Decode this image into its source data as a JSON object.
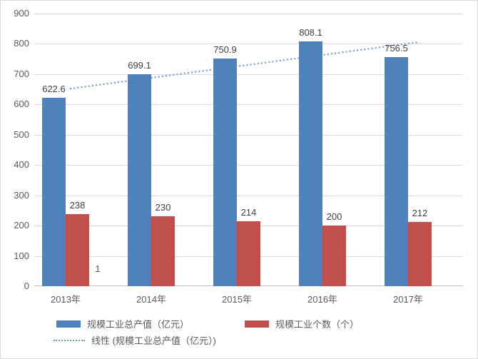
{
  "chart_data": {
    "type": "bar",
    "title": "",
    "xlabel": "",
    "ylabel": "",
    "categories": [
      "2013年",
      "2014年",
      "2015年",
      "2016年",
      "2017年"
    ],
    "series": [
      {
        "name": "规模工业总产值（亿元）",
        "color": "#4f81bd",
        "values": [
          622.6,
          699.1,
          750.9,
          808.1,
          756.5
        ]
      },
      {
        "name": "规模工业个数（个）",
        "color": "#c0504d",
        "values": [
          238,
          230,
          214,
          200,
          212
        ]
      }
    ],
    "trendline": {
      "name": "线性 (规模工业总产值（亿元）)",
      "color": "#6f9bd8",
      "style": "dotted",
      "y_start": 652,
      "y_end": 806
    },
    "ylim": [
      0,
      900
    ],
    "yticks": [
      0,
      100,
      200,
      300,
      400,
      500,
      600,
      700,
      800,
      900
    ],
    "grid": true,
    "legend_position": "bottom",
    "stray_label": {
      "text": "1",
      "category_index": 0
    }
  },
  "colors": {
    "gridline": "#dadada",
    "axis_text": "#595959",
    "data_label_text": "#404040",
    "border": "#d9d9d9",
    "background": "#ffffff"
  }
}
